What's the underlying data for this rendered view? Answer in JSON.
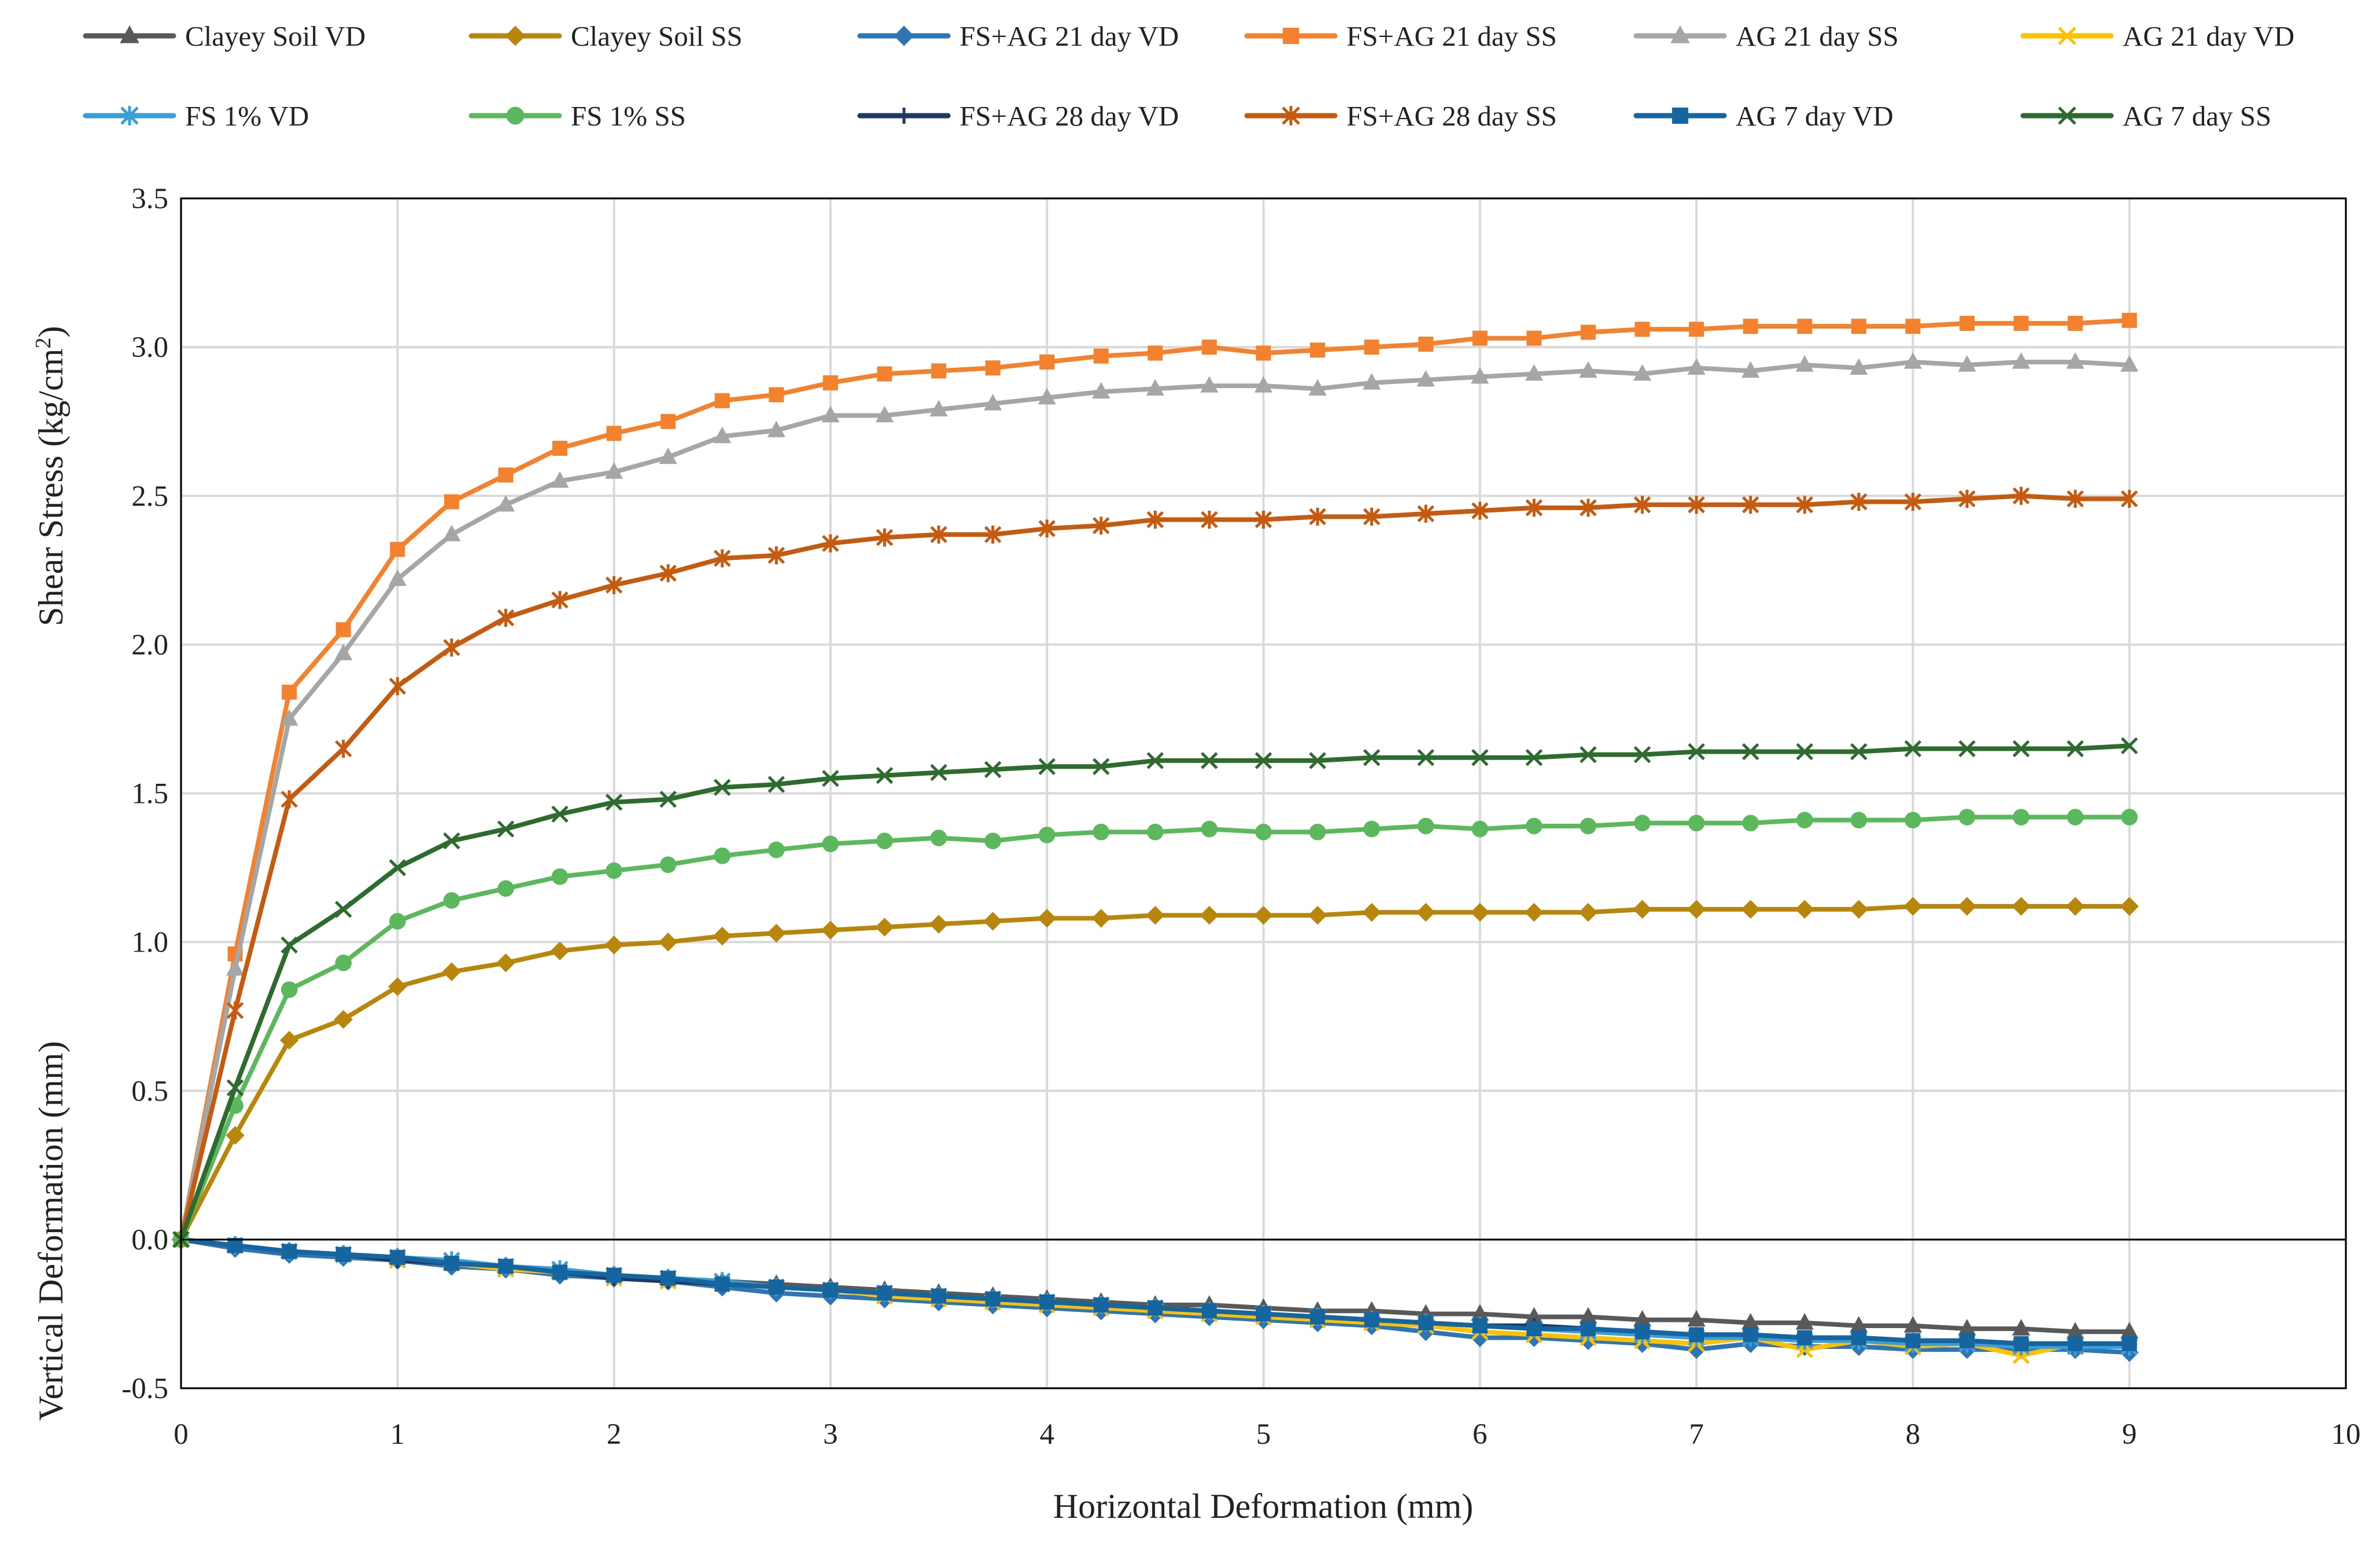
{
  "chart_data": {
    "type": "line",
    "title": "",
    "xlabel": "Horizontal Deformation (mm)",
    "ylabel_top": "Shear Stress (kg/cm",
    "ylabel_top_sup": "2",
    "ylabel_top_end": ")",
    "ylabel_bottom": "Vertical Deformation (mm)",
    "xlim": [
      0,
      10
    ],
    "ylim": [
      -0.5,
      3.5
    ],
    "x_ticks": [
      "0",
      "1",
      "2",
      "3",
      "4",
      "5",
      "6",
      "7",
      "8",
      "9",
      "10"
    ],
    "y_ticks": [
      "-0.5",
      "0.0",
      "0.5",
      "1.0",
      "1.5",
      "2.0",
      "2.5",
      "3.0",
      "3.5"
    ],
    "grid": true,
    "legend_position": "top",
    "x": [
      0,
      0.25,
      0.5,
      0.75,
      1,
      1.25,
      1.5,
      1.75,
      2,
      2.25,
      2.5,
      2.75,
      3,
      3.25,
      3.5,
      3.75,
      4,
      4.25,
      4.5,
      4.75,
      5,
      5.25,
      5.5,
      5.75,
      6,
      6.25,
      6.5,
      6.75,
      7,
      7.25,
      7.5,
      7.75,
      8,
      8.25,
      8.5,
      8.75,
      9
    ],
    "series": [
      {
        "name": "Clayey Soil VD",
        "color": "#595959",
        "marker": "triangle",
        "values": [
          0,
          -0.02,
          -0.04,
          -0.05,
          -0.06,
          -0.08,
          -0.09,
          -0.11,
          -0.12,
          -0.13,
          -0.14,
          -0.15,
          -0.16,
          -0.17,
          -0.18,
          -0.19,
          -0.2,
          -0.21,
          -0.22,
          -0.22,
          -0.23,
          -0.24,
          -0.24,
          -0.25,
          -0.25,
          -0.26,
          -0.26,
          -0.27,
          -0.27,
          -0.28,
          -0.28,
          -0.29,
          -0.29,
          -0.3,
          -0.3,
          -0.31,
          -0.31
        ]
      },
      {
        "name": "Clayey Soil SS",
        "color": "#b8860b",
        "marker": "diamond",
        "values": [
          0,
          0.35,
          0.67,
          0.74,
          0.85,
          0.9,
          0.93,
          0.97,
          0.99,
          1.0,
          1.02,
          1.03,
          1.04,
          1.05,
          1.06,
          1.07,
          1.08,
          1.08,
          1.09,
          1.09,
          1.09,
          1.09,
          1.1,
          1.1,
          1.1,
          1.1,
          1.1,
          1.11,
          1.11,
          1.11,
          1.11,
          1.11,
          1.12,
          1.12,
          1.12,
          1.12,
          1.12
        ]
      },
      {
        "name": "FS+AG 21 day VD",
        "color": "#2e75b6",
        "marker": "diamond",
        "values": [
          0,
          -0.03,
          -0.05,
          -0.06,
          -0.07,
          -0.09,
          -0.1,
          -0.12,
          -0.13,
          -0.14,
          -0.16,
          -0.18,
          -0.19,
          -0.2,
          -0.21,
          -0.22,
          -0.23,
          -0.24,
          -0.25,
          -0.26,
          -0.27,
          -0.28,
          -0.29,
          -0.31,
          -0.33,
          -0.33,
          -0.34,
          -0.35,
          -0.37,
          -0.35,
          -0.36,
          -0.36,
          -0.37,
          -0.37,
          -0.37,
          -0.37,
          -0.38
        ]
      },
      {
        "name": "FS+AG 21 day SS",
        "color": "#f4812d",
        "marker": "square",
        "values": [
          0,
          0.96,
          1.84,
          2.05,
          2.32,
          2.48,
          2.57,
          2.66,
          2.71,
          2.75,
          2.82,
          2.84,
          2.88,
          2.91,
          2.92,
          2.93,
          2.95,
          2.97,
          2.98,
          3.0,
          2.98,
          2.99,
          3.0,
          3.01,
          3.03,
          3.03,
          3.05,
          3.06,
          3.06,
          3.07,
          3.07,
          3.07,
          3.07,
          3.08,
          3.08,
          3.08,
          3.09
        ]
      },
      {
        "name": "AG 21 day SS",
        "color": "#a6a6a6",
        "marker": "triangle",
        "values": [
          0,
          0.91,
          1.75,
          1.97,
          2.22,
          2.37,
          2.47,
          2.55,
          2.58,
          2.63,
          2.7,
          2.72,
          2.77,
          2.77,
          2.79,
          2.81,
          2.83,
          2.85,
          2.86,
          2.87,
          2.87,
          2.86,
          2.88,
          2.89,
          2.9,
          2.91,
          2.92,
          2.91,
          2.93,
          2.92,
          2.94,
          2.93,
          2.95,
          2.94,
          2.95,
          2.95,
          2.94
        ]
      },
      {
        "name": "AG 21 day VD",
        "color": "#ffc000",
        "marker": "x",
        "values": [
          0,
          -0.02,
          -0.04,
          -0.05,
          -0.07,
          -0.08,
          -0.1,
          -0.11,
          -0.13,
          -0.14,
          -0.15,
          -0.16,
          -0.17,
          -0.19,
          -0.2,
          -0.21,
          -0.22,
          -0.23,
          -0.24,
          -0.25,
          -0.26,
          -0.27,
          -0.28,
          -0.29,
          -0.31,
          -0.32,
          -0.33,
          -0.34,
          -0.35,
          -0.33,
          -0.37,
          -0.34,
          -0.36,
          -0.35,
          -0.39,
          -0.35,
          -0.36
        ]
      },
      {
        "name": "FS 1% VD",
        "color": "#3a9fd9",
        "marker": "asterisk",
        "values": [
          0,
          -0.02,
          -0.04,
          -0.05,
          -0.06,
          -0.07,
          -0.09,
          -0.1,
          -0.12,
          -0.13,
          -0.14,
          -0.16,
          -0.17,
          -0.18,
          -0.19,
          -0.2,
          -0.21,
          -0.22,
          -0.23,
          -0.24,
          -0.25,
          -0.26,
          -0.27,
          -0.28,
          -0.29,
          -0.3,
          -0.31,
          -0.32,
          -0.33,
          -0.33,
          -0.34,
          -0.34,
          -0.35,
          -0.35,
          -0.36,
          -0.36,
          -0.36
        ]
      },
      {
        "name": "FS 1% SS",
        "color": "#5cb85c",
        "marker": "circle",
        "values": [
          0,
          0.45,
          0.84,
          0.93,
          1.07,
          1.14,
          1.18,
          1.22,
          1.24,
          1.26,
          1.29,
          1.31,
          1.33,
          1.34,
          1.35,
          1.34,
          1.36,
          1.37,
          1.37,
          1.38,
          1.37,
          1.37,
          1.38,
          1.39,
          1.38,
          1.39,
          1.39,
          1.4,
          1.4,
          1.4,
          1.41,
          1.41,
          1.41,
          1.42,
          1.42,
          1.42,
          1.42
        ]
      },
      {
        "name": "FS+AG 28 day VD",
        "color": "#1f3864",
        "marker": "plus",
        "values": [
          0,
          -0.02,
          -0.04,
          -0.05,
          -0.07,
          -0.08,
          -0.09,
          -0.11,
          -0.13,
          -0.14,
          -0.15,
          -0.16,
          -0.17,
          -0.18,
          -0.19,
          -0.2,
          -0.21,
          -0.22,
          -0.23,
          -0.24,
          -0.25,
          -0.26,
          -0.27,
          -0.28,
          -0.29,
          -0.29,
          -0.3,
          -0.31,
          -0.32,
          -0.32,
          -0.33,
          -0.33,
          -0.34,
          -0.34,
          -0.35,
          -0.35,
          -0.35
        ]
      },
      {
        "name": "FS+AG 28 day SS",
        "color": "#c55a11",
        "marker": "asterisk",
        "values": [
          0,
          0.77,
          1.48,
          1.65,
          1.86,
          1.99,
          2.09,
          2.15,
          2.2,
          2.24,
          2.29,
          2.3,
          2.34,
          2.36,
          2.37,
          2.37,
          2.39,
          2.4,
          2.42,
          2.42,
          2.42,
          2.43,
          2.43,
          2.44,
          2.45,
          2.46,
          2.46,
          2.47,
          2.47,
          2.47,
          2.47,
          2.48,
          2.48,
          2.49,
          2.5,
          2.49,
          2.49
        ]
      },
      {
        "name": "AG 7 day VD",
        "color": "#1565a0",
        "marker": "square",
        "values": [
          0,
          -0.02,
          -0.04,
          -0.05,
          -0.06,
          -0.08,
          -0.09,
          -0.11,
          -0.12,
          -0.13,
          -0.15,
          -0.16,
          -0.17,
          -0.18,
          -0.19,
          -0.2,
          -0.21,
          -0.22,
          -0.23,
          -0.24,
          -0.25,
          -0.26,
          -0.27,
          -0.28,
          -0.29,
          -0.3,
          -0.3,
          -0.31,
          -0.32,
          -0.32,
          -0.33,
          -0.33,
          -0.34,
          -0.34,
          -0.35,
          -0.35,
          -0.35
        ]
      },
      {
        "name": "AG 7 day SS",
        "color": "#2e6b2e",
        "marker": "x",
        "values": [
          0,
          0.51,
          0.99,
          1.11,
          1.25,
          1.34,
          1.38,
          1.43,
          1.47,
          1.48,
          1.52,
          1.53,
          1.55,
          1.56,
          1.57,
          1.58,
          1.59,
          1.59,
          1.61,
          1.61,
          1.61,
          1.61,
          1.62,
          1.62,
          1.62,
          1.62,
          1.63,
          1.63,
          1.64,
          1.64,
          1.64,
          1.64,
          1.65,
          1.65,
          1.65,
          1.65,
          1.66
        ]
      }
    ]
  }
}
